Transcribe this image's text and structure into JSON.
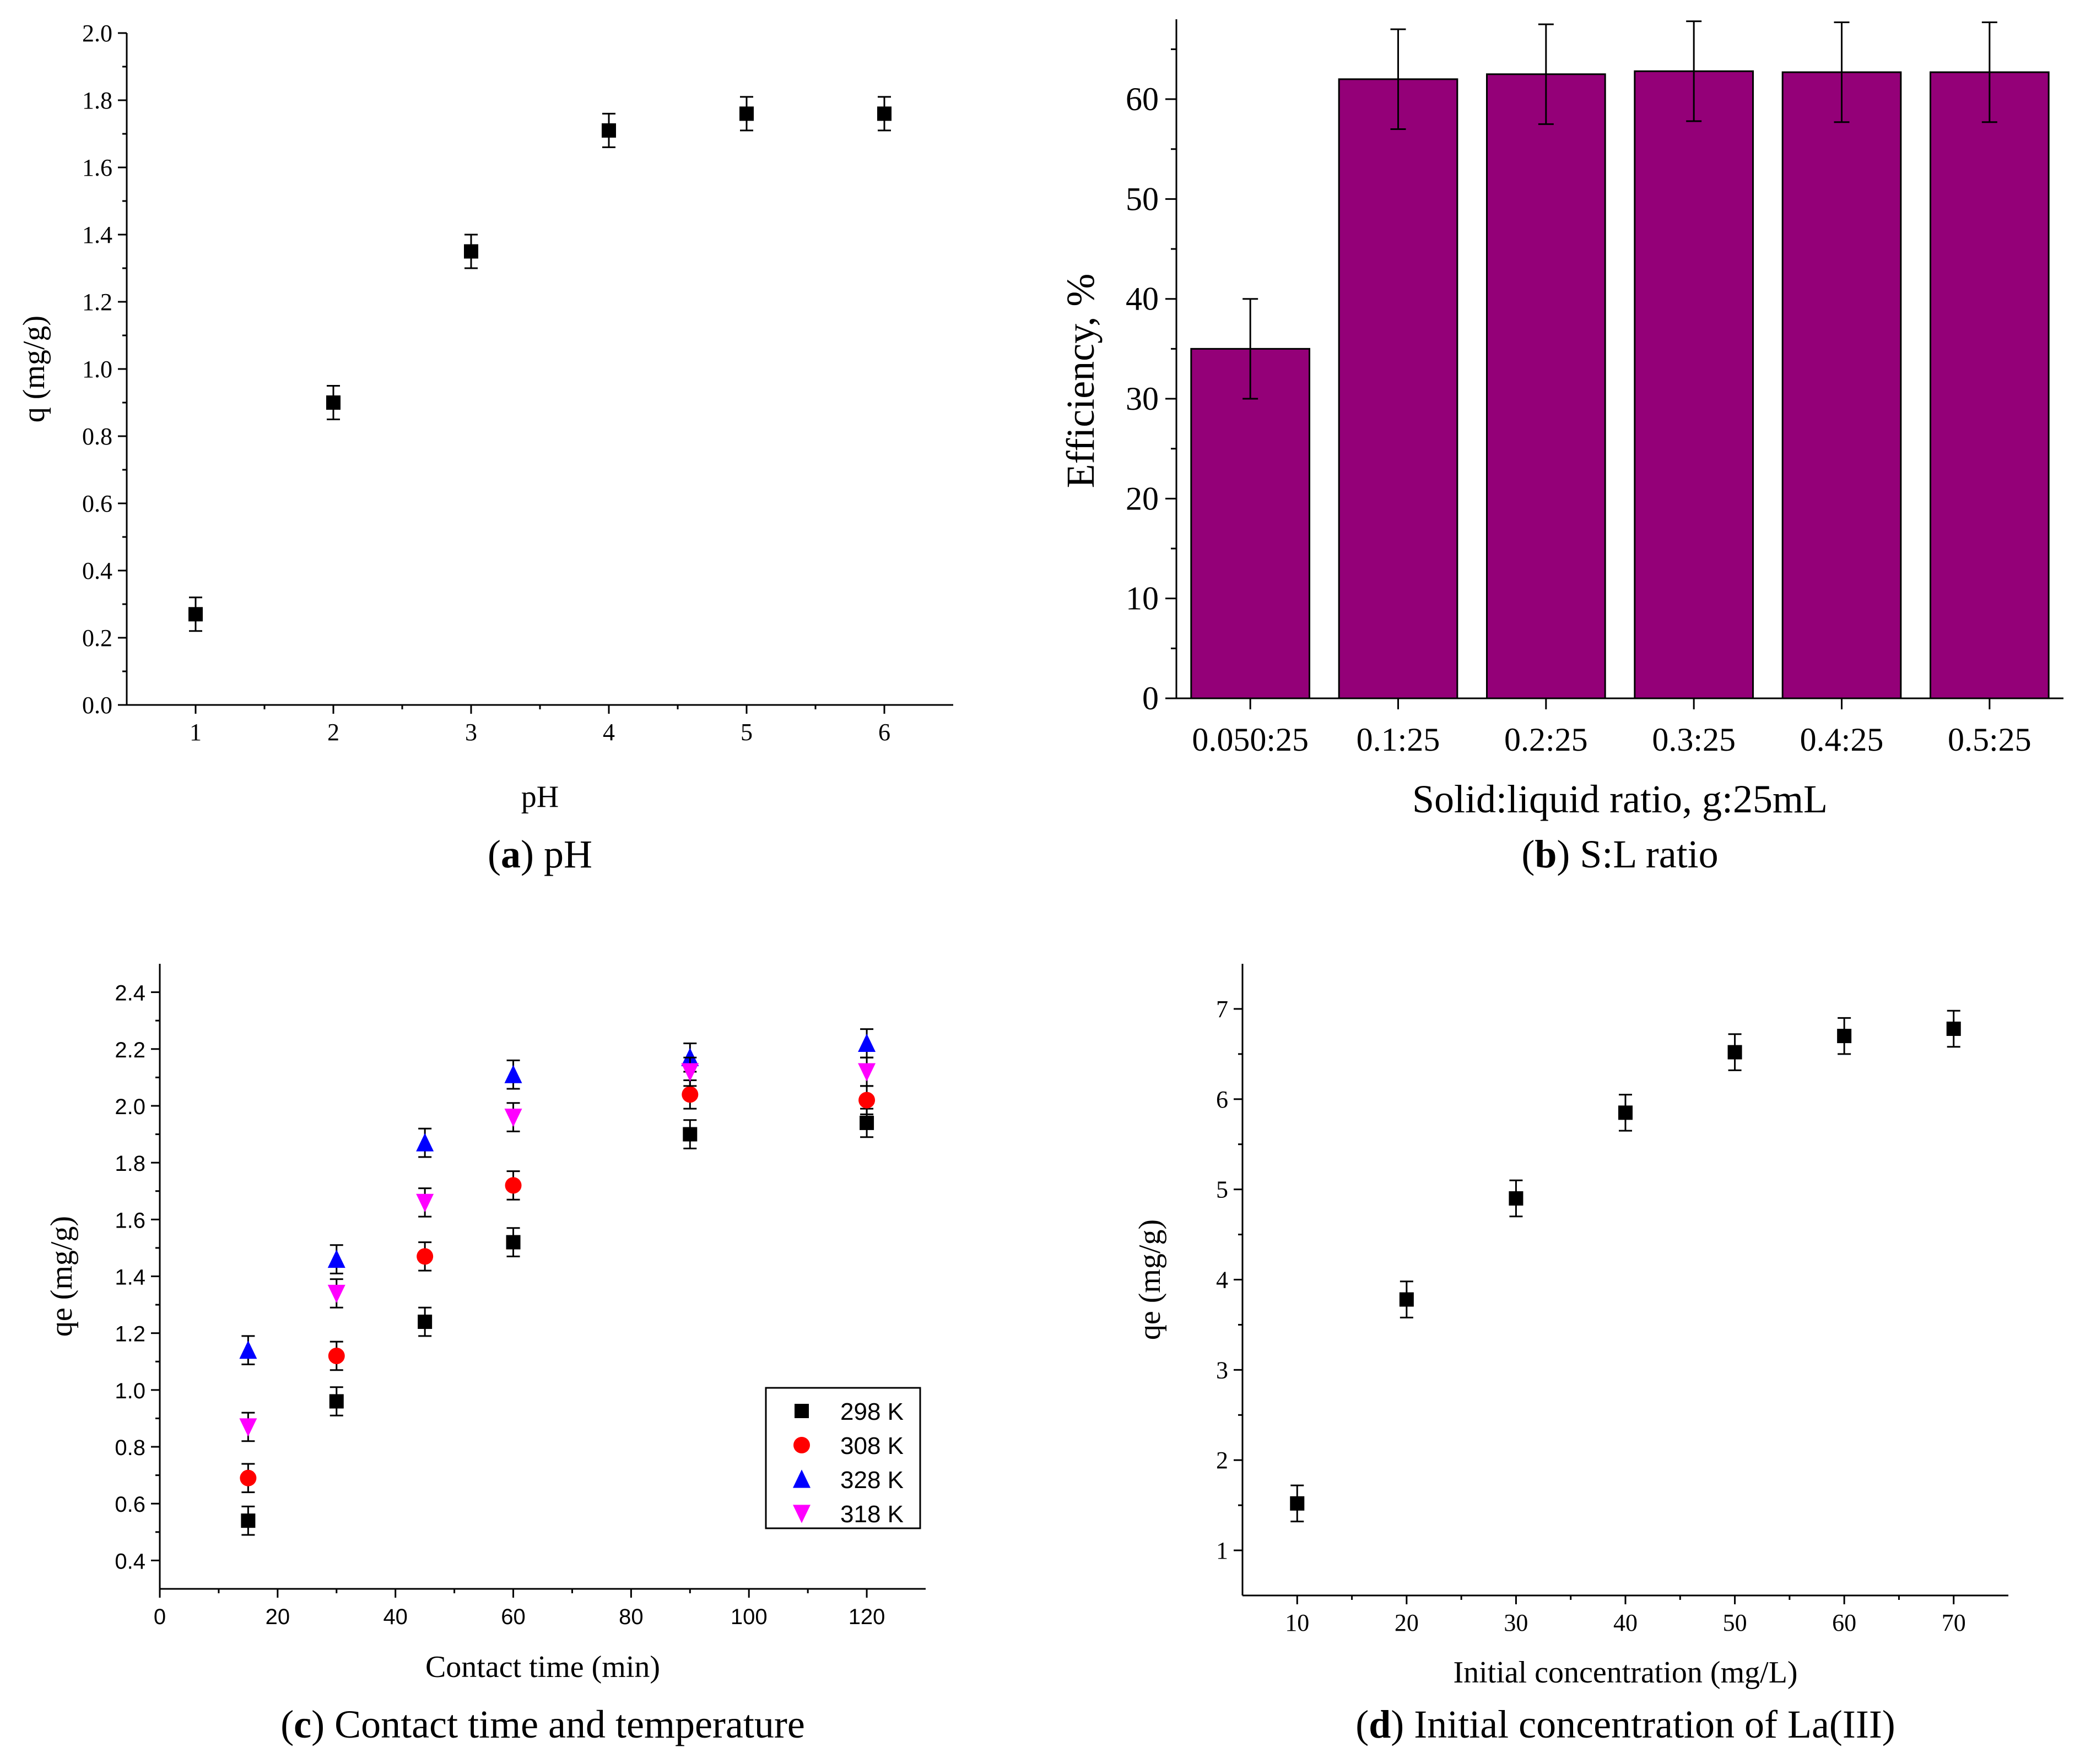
{
  "chart_data": [
    {
      "id": "a",
      "type": "scatter",
      "caption_letter": "a",
      "caption_text": "pH",
      "xlabel": "pH",
      "ylabel": "q (mg/g)",
      "xlim": [
        0.5,
        6.5
      ],
      "ylim": [
        0.0,
        2.0
      ],
      "xticks": [
        1,
        2,
        3,
        4,
        5,
        6
      ],
      "xtick_labels": [
        "1",
        "2",
        "3",
        "4",
        "5",
        "6"
      ],
      "yticks": [
        0.0,
        0.2,
        0.4,
        0.6,
        0.8,
        1.0,
        1.2,
        1.4,
        1.6,
        1.8,
        2.0
      ],
      "ytick_labels": [
        "0.0",
        "0.2",
        "0.4",
        "0.6",
        "0.8",
        "1.0",
        "1.2",
        "1.4",
        "1.6",
        "1.8",
        "2.0"
      ],
      "series": [
        {
          "name": "q",
          "color": "#000000",
          "marker": "square",
          "x": [
            1,
            2,
            3,
            4,
            5,
            6
          ],
          "y": [
            0.27,
            0.9,
            1.35,
            1.71,
            1.76,
            1.76
          ],
          "err": [
            0.05,
            0.05,
            0.05,
            0.05,
            0.05,
            0.05
          ]
        }
      ]
    },
    {
      "id": "b",
      "type": "bar",
      "caption_letter": "b",
      "caption_text": "S:L ratio",
      "xlabel": "Solid:liquid ratio, g:25mL",
      "ylabel": "Efficiency, %",
      "ylim": [
        0,
        68
      ],
      "yticks": [
        0,
        10,
        20,
        30,
        40,
        50,
        60
      ],
      "ytick_labels": [
        "0",
        "10",
        "20",
        "30",
        "40",
        "50",
        "60"
      ],
      "categories": [
        "0.050:25",
        "0.1:25",
        "0.2:25",
        "0.3:25",
        "0.4:25",
        "0.5:25"
      ],
      "values": [
        35,
        62,
        62.5,
        62.8,
        62.7,
        62.7
      ],
      "err": [
        5,
        5,
        5,
        5,
        5,
        5
      ],
      "color": "#940078"
    },
    {
      "id": "c",
      "type": "scatter",
      "caption_letter": "c",
      "caption_text": "Contact time and temperature",
      "xlabel": "Contact time (min)",
      "ylabel": "qe (mg/g)",
      "xlim": [
        0,
        130
      ],
      "ylim": [
        0.3,
        2.5
      ],
      "xticks": [
        0,
        20,
        40,
        60,
        80,
        100,
        120
      ],
      "xtick_labels": [
        "0",
        "20",
        "40",
        "60",
        "80",
        "100",
        "120"
      ],
      "yticks": [
        0.4,
        0.6,
        0.8,
        1.0,
        1.2,
        1.4,
        1.6,
        1.8,
        2.0,
        2.2,
        2.4
      ],
      "ytick_labels": [
        "0.4",
        "0.6",
        "0.8",
        "1.0",
        "1.2",
        "1.4",
        "1.6",
        "1.8",
        "2.0",
        "2.2",
        "2.4"
      ],
      "legend_position": "bottom-right",
      "series": [
        {
          "name": "298 K",
          "color": "#000000",
          "marker": "square",
          "x": [
            15,
            30,
            45,
            60,
            90,
            120
          ],
          "y": [
            0.54,
            0.96,
            1.24,
            1.52,
            1.9,
            1.94
          ],
          "err": [
            0.05,
            0.05,
            0.05,
            0.05,
            0.05,
            0.05
          ]
        },
        {
          "name": "308 K",
          "color": "#ff0000",
          "marker": "circle",
          "x": [
            15,
            30,
            45,
            60,
            90,
            120
          ],
          "y": [
            0.69,
            1.12,
            1.47,
            1.72,
            2.04,
            2.02
          ],
          "err": [
            0.05,
            0.05,
            0.05,
            0.05,
            0.05,
            0.05
          ]
        },
        {
          "name": "328 K",
          "color": "#0000ff",
          "marker": "triangle-up",
          "x": [
            15,
            30,
            45,
            60,
            90,
            120
          ],
          "y": [
            1.14,
            1.46,
            1.87,
            2.11,
            2.17,
            2.22
          ],
          "err": [
            0.05,
            0.05,
            0.05,
            0.05,
            0.05,
            0.05
          ]
        },
        {
          "name": "318 K",
          "color": "#ff00ff",
          "marker": "triangle-down",
          "x": [
            15,
            30,
            45,
            60,
            90,
            120
          ],
          "y": [
            0.87,
            1.34,
            1.66,
            1.96,
            2.12,
            2.12
          ],
          "err": [
            0.05,
            0.05,
            0.05,
            0.05,
            0.05,
            0.05
          ]
        }
      ]
    },
    {
      "id": "d",
      "type": "scatter",
      "caption_letter": "d",
      "caption_text": "Initial concentration of La(III)",
      "xlabel": "Initial concentration (mg/L)",
      "ylabel": "qe (mg/g)",
      "xlim": [
        5,
        75
      ],
      "ylim": [
        0.5,
        7.5
      ],
      "xticks": [
        10,
        20,
        30,
        40,
        50,
        60,
        70
      ],
      "xtick_labels": [
        "10",
        "20",
        "30",
        "40",
        "50",
        "60",
        "70"
      ],
      "yticks": [
        1,
        2,
        3,
        4,
        5,
        6,
        7
      ],
      "ytick_labels": [
        "1",
        "2",
        "3",
        "4",
        "5",
        "6",
        "7"
      ],
      "series": [
        {
          "name": "qe",
          "color": "#000000",
          "marker": "square",
          "x": [
            10,
            20,
            30,
            40,
            50,
            60,
            70
          ],
          "y": [
            1.52,
            3.78,
            4.9,
            5.85,
            6.52,
            6.7,
            6.78
          ],
          "err": [
            0.2,
            0.2,
            0.2,
            0.2,
            0.2,
            0.2,
            0.2
          ]
        }
      ]
    }
  ]
}
